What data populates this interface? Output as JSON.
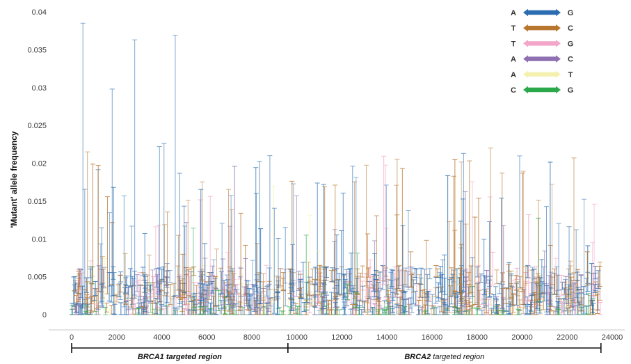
{
  "chart_data": {
    "type": "scatter",
    "subtype": "error-bar range plot",
    "title": "",
    "ylabel": "'Mutant' allele frequency",
    "xlabel": "",
    "xlim": [
      0,
      24000
    ],
    "ylim": [
      0,
      0.04
    ],
    "x_ticks": [
      "0",
      "2000",
      "4000",
      "6000",
      "8000",
      "10000",
      "12000",
      "14000",
      "16000",
      "18000",
      "20000",
      "22000",
      "24000"
    ],
    "y_ticks": [
      "0",
      "0.005",
      "0.01",
      "0.015",
      "0.02",
      "0.025",
      "0.03",
      "0.035",
      "0.04"
    ],
    "data_x_range": [
      0,
      23500
    ],
    "baseline_band": {
      "min": 0.0,
      "max": 0.006
    },
    "regions": [
      {
        "label_italic": "BRCA1",
        "label_rest": " targeted region",
        "start": 0,
        "end": 9600
      },
      {
        "label_italic": "BRCA2",
        "label_rest": " targeted region",
        "start": 9600,
        "end": 23500
      }
    ],
    "series": [
      {
        "name": "A-G",
        "from": "A",
        "to": "G",
        "color": "#2a6db0"
      },
      {
        "name": "T-C",
        "from": "T",
        "to": "C",
        "color": "#b8762e"
      },
      {
        "name": "T-G",
        "from": "T",
        "to": "G",
        "color": "#f4a6c9"
      },
      {
        "name": "A-C",
        "from": "A",
        "to": "C",
        "color": "#8e6fb0"
      },
      {
        "name": "A-T",
        "from": "A",
        "to": "T",
        "color": "#f4f1b0"
      },
      {
        "name": "C-G",
        "from": "C",
        "to": "G",
        "color": "#2aa84a"
      }
    ],
    "highlighted_points": [
      {
        "x": 500,
        "y": 0.0385,
        "series": "A-G"
      },
      {
        "x": 700,
        "y": 0.0215,
        "series": "T-C"
      },
      {
        "x": 1800,
        "y": 0.0298,
        "series": "A-G"
      },
      {
        "x": 2800,
        "y": 0.0363,
        "series": "A-G"
      },
      {
        "x": 3900,
        "y": 0.0222,
        "series": "A-G"
      },
      {
        "x": 4100,
        "y": 0.0226,
        "series": "A-G"
      },
      {
        "x": 4600,
        "y": 0.0369,
        "series": "A-G"
      },
      {
        "x": 8800,
        "y": 0.021,
        "series": "A-G"
      },
      {
        "x": 17400,
        "y": 0.0213,
        "series": "A-G"
      },
      {
        "x": 18600,
        "y": 0.022,
        "series": "T-C"
      },
      {
        "x": 22300,
        "y": 0.0207,
        "series": "T-C"
      }
    ]
  }
}
